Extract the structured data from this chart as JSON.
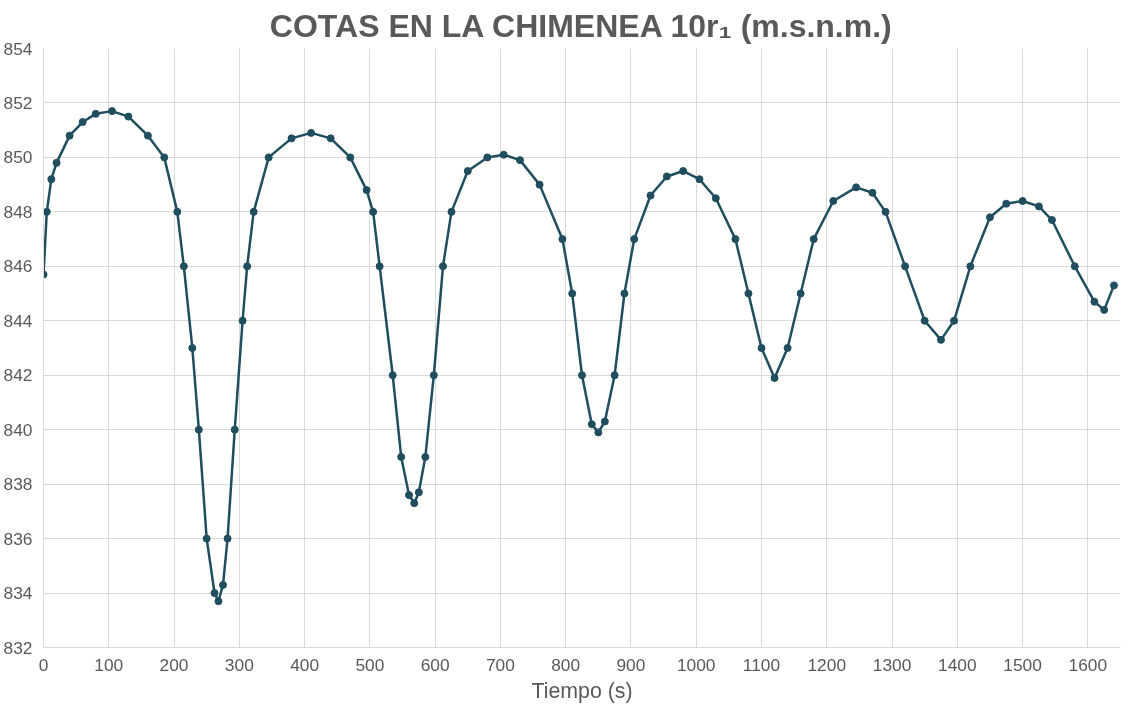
{
  "chart_data": {
    "type": "line",
    "title": "COTAS EN LA CHIMENEA 10r₁ (m.s.n.m.)",
    "xlabel": "Tiempo (s)",
    "xlim": [
      0,
      1650
    ],
    "xticks": [
      0,
      100,
      200,
      300,
      400,
      500,
      600,
      700,
      800,
      900,
      1000,
      1100,
      1200,
      1300,
      1400,
      1500,
      1600
    ],
    "ylim": [
      832,
      854
    ],
    "yticks": [
      832,
      834,
      836,
      838,
      840,
      842,
      844,
      846,
      848,
      850,
      852,
      854
    ],
    "grid": true,
    "marker": "circle",
    "line_style": "solid",
    "series": [
      {
        "color": "#1f4e5f",
        "x": [
          0,
          5,
          12,
          20,
          40,
          60,
          80,
          105,
          130,
          160,
          185,
          205,
          215,
          228,
          238,
          250,
          262,
          268,
          275,
          282,
          293,
          305,
          312,
          322,
          345,
          380,
          410,
          440,
          470,
          495,
          505,
          515,
          535,
          548,
          560,
          568,
          575,
          585,
          598,
          612,
          625,
          650,
          680,
          705,
          730,
          760,
          795,
          810,
          825,
          840,
          850,
          860,
          875,
          890,
          905,
          930,
          955,
          980,
          1005,
          1030,
          1060,
          1080,
          1100,
          1120,
          1140,
          1160,
          1180,
          1210,
          1245,
          1270,
          1290,
          1320,
          1350,
          1375,
          1395,
          1420,
          1450,
          1475,
          1500,
          1525,
          1545,
          1580,
          1610,
          1625,
          1640
        ],
        "values": [
          845.7,
          848,
          849.2,
          849.8,
          850.8,
          851.3,
          851.6,
          851.7,
          851.5,
          850.8,
          850,
          848,
          846,
          843,
          840,
          836,
          834,
          833.7,
          834.3,
          836,
          840,
          844,
          846,
          848,
          850,
          850.7,
          850.9,
          850.7,
          850,
          848.8,
          848,
          846,
          842,
          839,
          837.6,
          837.3,
          837.7,
          839,
          842,
          846,
          848,
          849.5,
          850,
          850.1,
          849.9,
          849,
          847,
          845,
          842,
          840.2,
          839.9,
          840.3,
          842,
          845,
          847,
          848.6,
          849.3,
          849.5,
          849.2,
          848.5,
          847,
          845,
          843,
          841.9,
          843,
          845,
          847,
          848.4,
          848.9,
          848.7,
          848,
          846,
          844,
          843.3,
          844,
          846,
          847.8,
          848.3,
          848.4,
          848.2,
          847.7,
          846,
          844.7,
          844.4,
          845.3
        ]
      }
    ]
  }
}
